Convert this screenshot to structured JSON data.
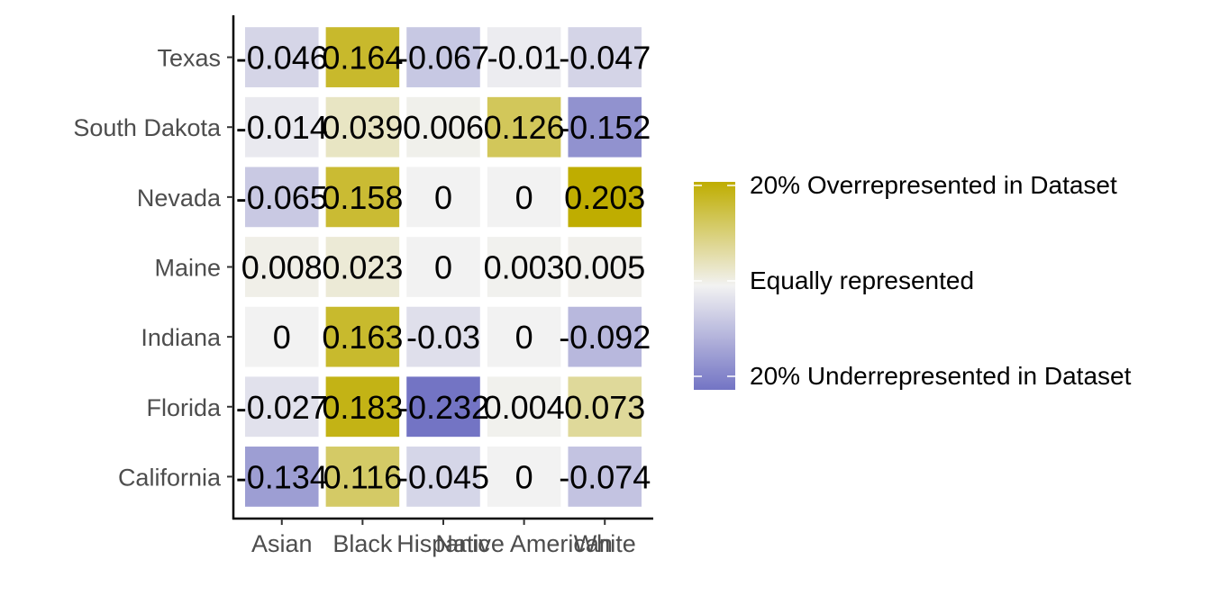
{
  "chart_data": {
    "type": "heatmap",
    "title": "",
    "xlabel": "",
    "ylabel": "",
    "x_categories": [
      "Asian",
      "Black",
      "Hispanic",
      "Native American",
      "White"
    ],
    "y_categories": [
      "Texas",
      "South Dakota",
      "Nevada",
      "Maine",
      "Indiana",
      "Florida",
      "California"
    ],
    "values": [
      [
        -0.046,
        0.164,
        -0.067,
        -0.01,
        -0.047
      ],
      [
        -0.014,
        0.039,
        0.006,
        0.126,
        -0.152
      ],
      [
        -0.065,
        0.158,
        0,
        0,
        0.203
      ],
      [
        0.008,
        0.023,
        0,
        0.003,
        0.005
      ],
      [
        0,
        0.163,
        -0.03,
        0,
        -0.092
      ],
      [
        -0.027,
        0.183,
        -0.232,
        0.004,
        0.073
      ],
      [
        -0.134,
        0.116,
        -0.045,
        0,
        -0.074
      ]
    ],
    "cell_labels": [
      [
        "-0.046",
        "0.164",
        "-0.067",
        "-0.01",
        "-0.047"
      ],
      [
        "-0.014",
        "0.039",
        "0.006",
        "0.126",
        "-0.152"
      ],
      [
        "-0.065",
        "0.158",
        "0",
        "0",
        "0.203"
      ],
      [
        "0.008",
        "0.023",
        "0",
        "0.003",
        "0.005"
      ],
      [
        "0",
        "0.163",
        "-0.03",
        "0",
        "-0.092"
      ],
      [
        "-0.027",
        "0.183",
        "-0.232",
        "0.004",
        "0.073"
      ],
      [
        "-0.134",
        "0.116",
        "-0.045",
        "0",
        "-0.074"
      ]
    ],
    "color_scale": {
      "low": "#7374c4",
      "mid": "#f2f2f2",
      "high": "#bfad00",
      "limits": [
        -0.2,
        0.2
      ]
    },
    "legend": {
      "placement": "right",
      "labels": [
        "20% Overrepresented in Dataset",
        "Equally represented",
        "20% Underrepresented in Dataset"
      ]
    },
    "grid": false
  }
}
